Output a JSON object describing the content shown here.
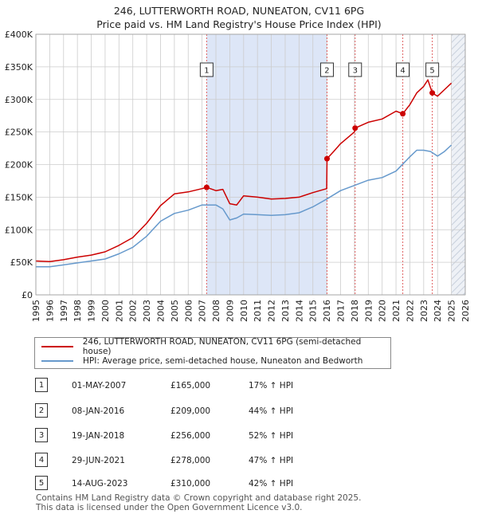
{
  "title_line1": "246, LUTTERWORTH ROAD, NUNEATON, CV11 6PG",
  "title_line2": "Price paid vs. HM Land Registry's House Price Index (HPI)",
  "colors": {
    "price_line": "#cc0000",
    "hpi_line": "#6699cc",
    "sale_band": "#dde6f7",
    "future_hatch": "#c8d0dc",
    "grid": "#cccccc",
    "vline": "#e06060"
  },
  "legend": {
    "price_label": "246, LUTTERWORTH ROAD, NUNEATON, CV11 6PG (semi-detached house)",
    "hpi_label": "HPI: Average price, semi-detached house, Nuneaton and Bedworth"
  },
  "sales": [
    {
      "num": "1",
      "date": "01-MAY-2007",
      "price": "£165,000",
      "hpi": "17% ↑ HPI"
    },
    {
      "num": "2",
      "date": "08-JAN-2016",
      "price": "£209,000",
      "hpi": "44% ↑ HPI"
    },
    {
      "num": "3",
      "date": "19-JAN-2018",
      "price": "£256,000",
      "hpi": "52% ↑ HPI"
    },
    {
      "num": "4",
      "date": "29-JUN-2021",
      "price": "£278,000",
      "hpi": "47% ↑ HPI"
    },
    {
      "num": "5",
      "date": "14-AUG-2023",
      "price": "£310,000",
      "hpi": "42% ↑ HPI"
    }
  ],
  "footer": {
    "line1": "Contains HM Land Registry data © Crown copyright and database right 2025.",
    "line2": "This data is licensed under the Open Government Licence v3.0."
  },
  "chart_data": {
    "type": "line",
    "title": "246, LUTTERWORTH ROAD, NUNEATON, CV11 6PG — Price paid vs. HM Land Registry's House Price Index (HPI)",
    "xlabel": "",
    "ylabel": "",
    "xlim": [
      1995,
      2026
    ],
    "ylim": [
      0,
      400000
    ],
    "grid": true,
    "x_ticks": [
      "1995",
      "1996",
      "1997",
      "1998",
      "1999",
      "2000",
      "2001",
      "2002",
      "2003",
      "2004",
      "2005",
      "2006",
      "2007",
      "2008",
      "2009",
      "2010",
      "2011",
      "2012",
      "2013",
      "2014",
      "2015",
      "2016",
      "2017",
      "2018",
      "2019",
      "2020",
      "2021",
      "2022",
      "2023",
      "2024",
      "2025",
      "2026"
    ],
    "y_ticks": [
      {
        "value": 0,
        "label": "£0"
      },
      {
        "value": 50000,
        "label": "£50K"
      },
      {
        "value": 100000,
        "label": "£100K"
      },
      {
        "value": 150000,
        "label": "£150K"
      },
      {
        "value": 200000,
        "label": "£200K"
      },
      {
        "value": 250000,
        "label": "£250K"
      },
      {
        "value": 300000,
        "label": "£300K"
      },
      {
        "value": 350000,
        "label": "£350K"
      },
      {
        "value": 400000,
        "label": "£400K"
      }
    ],
    "shaded_band": [
      2007.33,
      2016.02
    ],
    "future_from": 2025.0,
    "sale_markers": [
      {
        "label": "1",
        "x": 2007.33,
        "y": 165000
      },
      {
        "label": "2",
        "x": 2016.02,
        "y": 209000
      },
      {
        "label": "3",
        "x": 2018.05,
        "y": 256000
      },
      {
        "label": "4",
        "x": 2021.49,
        "y": 278000
      },
      {
        "label": "5",
        "x": 2023.62,
        "y": 310000
      }
    ],
    "series": [
      {
        "name": "246, LUTTERWORTH ROAD, NUNEATON, CV11 6PG (semi-detached house)",
        "x": [
          1995,
          1996,
          1997,
          1998,
          1999,
          2000,
          2001,
          2002,
          2003,
          2004,
          2005,
          2006,
          2007,
          2007.33,
          2008,
          2008.5,
          2009,
          2009.5,
          2010,
          2011,
          2012,
          2013,
          2014,
          2015,
          2016,
          2016.02,
          2016.5,
          2017,
          2018,
          2018.05,
          2019,
          2020,
          2021,
          2021.49,
          2022,
          2022.5,
          2023,
          2023.3,
          2023.62,
          2024,
          2024.5,
          2025
        ],
        "values": [
          52000,
          51000,
          54000,
          58000,
          61000,
          66000,
          76000,
          88000,
          110000,
          137000,
          155000,
          158000,
          163000,
          165000,
          160000,
          162000,
          140000,
          138000,
          152000,
          150000,
          147000,
          148000,
          150000,
          157000,
          163000,
          209000,
          220000,
          232000,
          250000,
          256000,
          265000,
          270000,
          282000,
          278000,
          292000,
          310000,
          320000,
          330000,
          310000,
          305000,
          315000,
          325000
        ]
      },
      {
        "name": "HPI: Average price, semi-detached house, Nuneaton and Bedworth",
        "x": [
          1995,
          1996,
          1997,
          1998,
          1999,
          2000,
          2001,
          2002,
          2003,
          2004,
          2005,
          2006,
          2007,
          2008,
          2008.5,
          2009,
          2009.5,
          2010,
          2011,
          2012,
          2013,
          2014,
          2015,
          2016,
          2017,
          2018,
          2019,
          2020,
          2021,
          2022,
          2022.5,
          2023,
          2023.5,
          2024,
          2024.5,
          2025
        ],
        "values": [
          43000,
          43000,
          46000,
          49000,
          52000,
          55000,
          63000,
          73000,
          90000,
          113000,
          125000,
          130000,
          138000,
          138000,
          132000,
          115000,
          118000,
          124000,
          123000,
          122000,
          123000,
          126000,
          135000,
          147000,
          160000,
          168000,
          176000,
          180000,
          190000,
          212000,
          222000,
          222000,
          220000,
          213000,
          220000,
          230000
        ]
      }
    ]
  }
}
